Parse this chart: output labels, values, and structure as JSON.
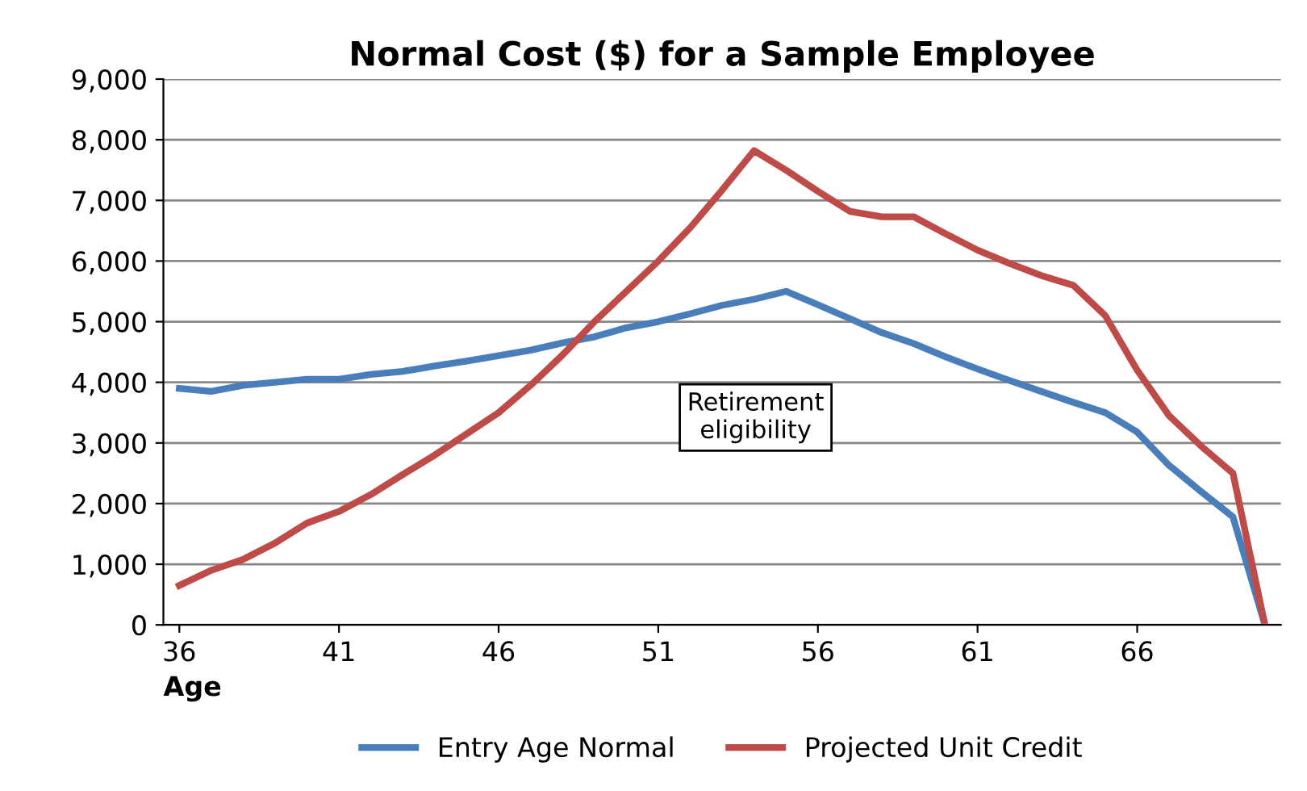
{
  "chart_data": {
    "type": "line",
    "title": "Normal Cost ($) for a Sample Employee",
    "xlabel": "Age",
    "x": [
      36,
      37,
      38,
      39,
      40,
      41,
      42,
      43,
      44,
      45,
      46,
      47,
      48,
      49,
      50,
      51,
      52,
      53,
      54,
      55,
      56,
      57,
      58,
      59,
      60,
      61,
      62,
      63,
      64,
      65,
      66,
      67,
      68,
      69,
      70
    ],
    "series": [
      {
        "name": "Entry Age Normal",
        "color": "#4a7ebb",
        "values": [
          3900,
          3850,
          3950,
          4000,
          4050,
          4050,
          4130,
          4180,
          4270,
          4350,
          4440,
          4530,
          4650,
          4750,
          4900,
          5000,
          5130,
          5270,
          5370,
          5500,
          5280,
          5050,
          4820,
          4640,
          4420,
          4220,
          4030,
          3850,
          3670,
          3500,
          3180,
          2630,
          2200,
          1780,
          0
        ]
      },
      {
        "name": "Projected Unit Credit",
        "color": "#be4b48",
        "values": [
          650,
          900,
          1080,
          1350,
          1680,
          1870,
          2150,
          2480,
          2800,
          3150,
          3500,
          3950,
          4450,
          5000,
          5500,
          6000,
          6550,
          7170,
          7820,
          7500,
          7150,
          6820,
          6730,
          6730,
          6450,
          6180,
          5960,
          5760,
          5600,
          5100,
          4200,
          3450,
          2950,
          2500,
          0
        ]
      }
    ],
    "xlim": [
      35.5,
      70.5
    ],
    "xticks": [
      36,
      41,
      46,
      51,
      56,
      61,
      66
    ],
    "ylim": [
      0,
      9000
    ],
    "yticks": [
      {
        "value": 0,
        "label": "0"
      },
      {
        "value": 1000,
        "label": "1,000"
      },
      {
        "value": 2000,
        "label": "2,000"
      },
      {
        "value": 3000,
        "label": "3,000"
      },
      {
        "value": 4000,
        "label": "4,000"
      },
      {
        "value": 5000,
        "label": "5,000"
      },
      {
        "value": 6000,
        "label": "6,000"
      },
      {
        "value": 7000,
        "label": "7,000"
      },
      {
        "value": 8000,
        "label": "8,000"
      },
      {
        "value": 9000,
        "label": "9,000"
      }
    ],
    "annotations": [
      "Retirement\neligibility"
    ],
    "grid": "y",
    "legend": "bottom",
    "marker": "none",
    "line_style": "solid"
  }
}
